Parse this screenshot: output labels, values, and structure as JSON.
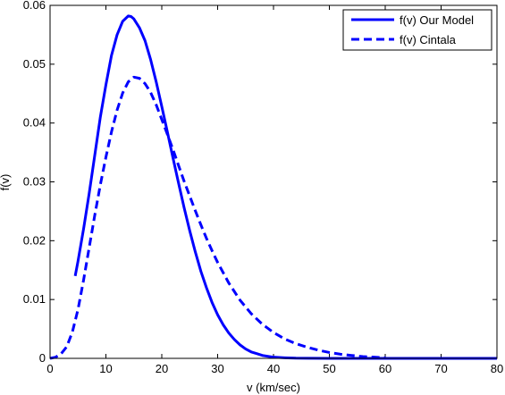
{
  "chart_data": {
    "type": "line",
    "title": "",
    "xlabel": "v (km/sec)",
    "ylabel": "f(v)",
    "xlim": [
      0,
      80
    ],
    "ylim": [
      0,
      0.06
    ],
    "xticks": [
      0,
      10,
      20,
      30,
      40,
      50,
      60,
      70,
      80
    ],
    "yticks": [
      0,
      0.01,
      0.02,
      0.03,
      0.04,
      0.05,
      0.06
    ],
    "xtick_labels": [
      "0",
      "10",
      "20",
      "30",
      "40",
      "50",
      "60",
      "70",
      "80"
    ],
    "ytick_labels": [
      "0",
      "0.01",
      "0.02",
      "0.03",
      "0.04",
      "0.05",
      "0.06"
    ],
    "grid": false,
    "legend_position": "top-right",
    "series": [
      {
        "name": "f(v) Our Model",
        "style": "solid",
        "color": "#0000ff",
        "x": [
          4.5,
          5,
          6,
          7,
          8,
          9,
          10,
          11,
          12,
          13,
          14,
          14.5,
          15,
          16,
          17,
          18,
          19,
          20,
          21,
          22,
          23,
          24,
          25,
          26,
          27,
          28,
          29,
          30,
          31,
          32,
          33,
          34,
          35,
          36,
          37,
          38,
          40,
          42,
          44,
          46,
          50,
          55,
          60,
          70,
          80
        ],
        "y": [
          0.014,
          0.0165,
          0.022,
          0.028,
          0.0345,
          0.041,
          0.0465,
          0.0515,
          0.055,
          0.0573,
          0.0582,
          0.0581,
          0.0577,
          0.0562,
          0.054,
          0.0508,
          0.047,
          0.0428,
          0.0385,
          0.0341,
          0.0298,
          0.0256,
          0.0217,
          0.0181,
          0.0148,
          0.012,
          0.0095,
          0.0074,
          0.0057,
          0.0043,
          0.0032,
          0.0023,
          0.0016,
          0.0011,
          0.0008,
          0.0005,
          0.0002,
          0.0001,
          3e-05,
          1e-05,
          0,
          0,
          0,
          0,
          0
        ]
      },
      {
        "name": "f(v) Cintala",
        "style": "dashed",
        "color": "#0000ff",
        "x": [
          0,
          1,
          2,
          3,
          4,
          5,
          6,
          7,
          8,
          9,
          10,
          11,
          12,
          13,
          14,
          15,
          16,
          17,
          18,
          19,
          20,
          21,
          22,
          23,
          24,
          25,
          26,
          27,
          28,
          29,
          30,
          32,
          34,
          36,
          38,
          40,
          42,
          44,
          46,
          48,
          50,
          52,
          54,
          56,
          58,
          60
        ],
        "y": [
          0,
          0.0002,
          0.0008,
          0.002,
          0.0045,
          0.0083,
          0.0133,
          0.0188,
          0.0243,
          0.0295,
          0.0342,
          0.0385,
          0.0422,
          0.0451,
          0.047,
          0.0478,
          0.0476,
          0.0467,
          0.0452,
          0.0431,
          0.0406,
          0.0381,
          0.0355,
          0.0328,
          0.0301,
          0.0276,
          0.0251,
          0.0227,
          0.0204,
          0.0183,
          0.0163,
          0.0128,
          0.0099,
          0.0076,
          0.0058,
          0.0044,
          0.0033,
          0.0025,
          0.0019,
          0.0014,
          0.001,
          0.0007,
          0.0005,
          0.0003,
          0.0002,
          0.0001
        ]
      }
    ]
  }
}
